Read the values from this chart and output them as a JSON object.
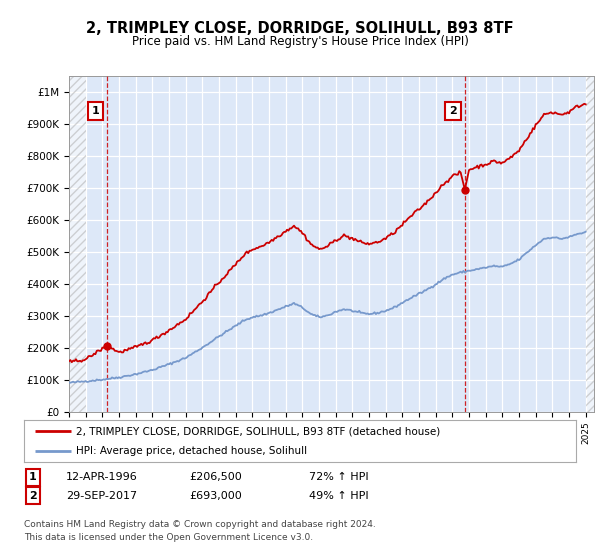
{
  "title": "2, TRIMPLEY CLOSE, DORRIDGE, SOLIHULL, B93 8TF",
  "subtitle": "Price paid vs. HM Land Registry's House Price Index (HPI)",
  "sale1_year": 1996.29,
  "sale1_price": 206500,
  "sale2_year": 2017.75,
  "sale2_price": 693000,
  "legend_line1": "2, TRIMPLEY CLOSE, DORRIDGE, SOLIHULL, B93 8TF (detached house)",
  "legend_line2": "HPI: Average price, detached house, Solihull",
  "footer": "Contains HM Land Registry data © Crown copyright and database right 2024.\nThis data is licensed under the Open Government Licence v3.0.",
  "hpi_color": "#7799cc",
  "price_color": "#cc0000",
  "bg_plot": "#dde8f8",
  "ylim": [
    0,
    1050000
  ],
  "xlim_start": 1994.0,
  "xlim_end": 2025.5,
  "hpi_anchors": [
    [
      1994.0,
      90000
    ],
    [
      1995.0,
      95000
    ],
    [
      1996.0,
      100000
    ],
    [
      1997.0,
      107000
    ],
    [
      1998.0,
      117000
    ],
    [
      1999.0,
      130000
    ],
    [
      2000.0,
      148000
    ],
    [
      2001.0,
      168000
    ],
    [
      2002.0,
      200000
    ],
    [
      2003.0,
      235000
    ],
    [
      2004.0,
      268000
    ],
    [
      2004.5,
      285000
    ],
    [
      2005.0,
      295000
    ],
    [
      2005.5,
      300000
    ],
    [
      2006.0,
      308000
    ],
    [
      2007.0,
      328000
    ],
    [
      2007.5,
      338000
    ],
    [
      2008.0,
      325000
    ],
    [
      2008.5,
      305000
    ],
    [
      2009.0,
      295000
    ],
    [
      2009.5,
      300000
    ],
    [
      2010.0,
      312000
    ],
    [
      2010.5,
      320000
    ],
    [
      2011.0,
      315000
    ],
    [
      2011.5,
      308000
    ],
    [
      2012.0,
      305000
    ],
    [
      2012.5,
      308000
    ],
    [
      2013.0,
      315000
    ],
    [
      2013.5,
      325000
    ],
    [
      2014.0,
      340000
    ],
    [
      2014.5,
      355000
    ],
    [
      2015.0,
      368000
    ],
    [
      2015.5,
      382000
    ],
    [
      2016.0,
      398000
    ],
    [
      2016.5,
      415000
    ],
    [
      2017.0,
      428000
    ],
    [
      2017.5,
      435000
    ],
    [
      2018.0,
      440000
    ],
    [
      2018.5,
      445000
    ],
    [
      2019.0,
      450000
    ],
    [
      2019.5,
      455000
    ],
    [
      2020.0,
      452000
    ],
    [
      2020.5,
      462000
    ],
    [
      2021.0,
      475000
    ],
    [
      2021.5,
      498000
    ],
    [
      2022.0,
      520000
    ],
    [
      2022.5,
      540000
    ],
    [
      2023.0,
      545000
    ],
    [
      2023.5,
      540000
    ],
    [
      2024.0,
      545000
    ],
    [
      2024.5,
      555000
    ],
    [
      2025.0,
      560000
    ]
  ],
  "price_anchors": [
    [
      1994.0,
      155000
    ],
    [
      1995.0,
      163000
    ],
    [
      1996.29,
      206500
    ],
    [
      1997.0,
      185000
    ],
    [
      1998.0,
      201000
    ],
    [
      1999.0,
      223000
    ],
    [
      2000.0,
      254000
    ],
    [
      2001.0,
      289000
    ],
    [
      2002.0,
      344000
    ],
    [
      2003.0,
      404000
    ],
    [
      2004.0,
      460000
    ],
    [
      2004.5,
      490000
    ],
    [
      2005.0,
      507000
    ],
    [
      2005.5,
      516000
    ],
    [
      2006.0,
      529000
    ],
    [
      2007.0,
      564000
    ],
    [
      2007.5,
      581000
    ],
    [
      2008.0,
      559000
    ],
    [
      2008.5,
      524000
    ],
    [
      2009.0,
      507000
    ],
    [
      2009.5,
      516000
    ],
    [
      2010.0,
      536000
    ],
    [
      2010.5,
      550000
    ],
    [
      2011.0,
      541000
    ],
    [
      2011.5,
      529000
    ],
    [
      2012.0,
      524000
    ],
    [
      2012.5,
      529000
    ],
    [
      2013.0,
      541000
    ],
    [
      2013.5,
      559000
    ],
    [
      2014.0,
      584000
    ],
    [
      2014.5,
      610000
    ],
    [
      2015.0,
      632000
    ],
    [
      2015.5,
      656000
    ],
    [
      2016.0,
      684000
    ],
    [
      2016.5,
      713000
    ],
    [
      2017.0,
      735000
    ],
    [
      2017.5,
      747000
    ],
    [
      2017.75,
      693000
    ],
    [
      2018.0,
      756000
    ],
    [
      2018.5,
      765000
    ],
    [
      2019.0,
      773000
    ],
    [
      2019.5,
      782000
    ],
    [
      2020.0,
      777000
    ],
    [
      2020.5,
      794000
    ],
    [
      2021.0,
      816000
    ],
    [
      2021.5,
      856000
    ],
    [
      2022.0,
      894000
    ],
    [
      2022.5,
      928000
    ],
    [
      2023.0,
      936000
    ],
    [
      2023.5,
      928000
    ],
    [
      2024.0,
      936000
    ],
    [
      2024.5,
      954000
    ],
    [
      2025.0,
      962000
    ]
  ]
}
